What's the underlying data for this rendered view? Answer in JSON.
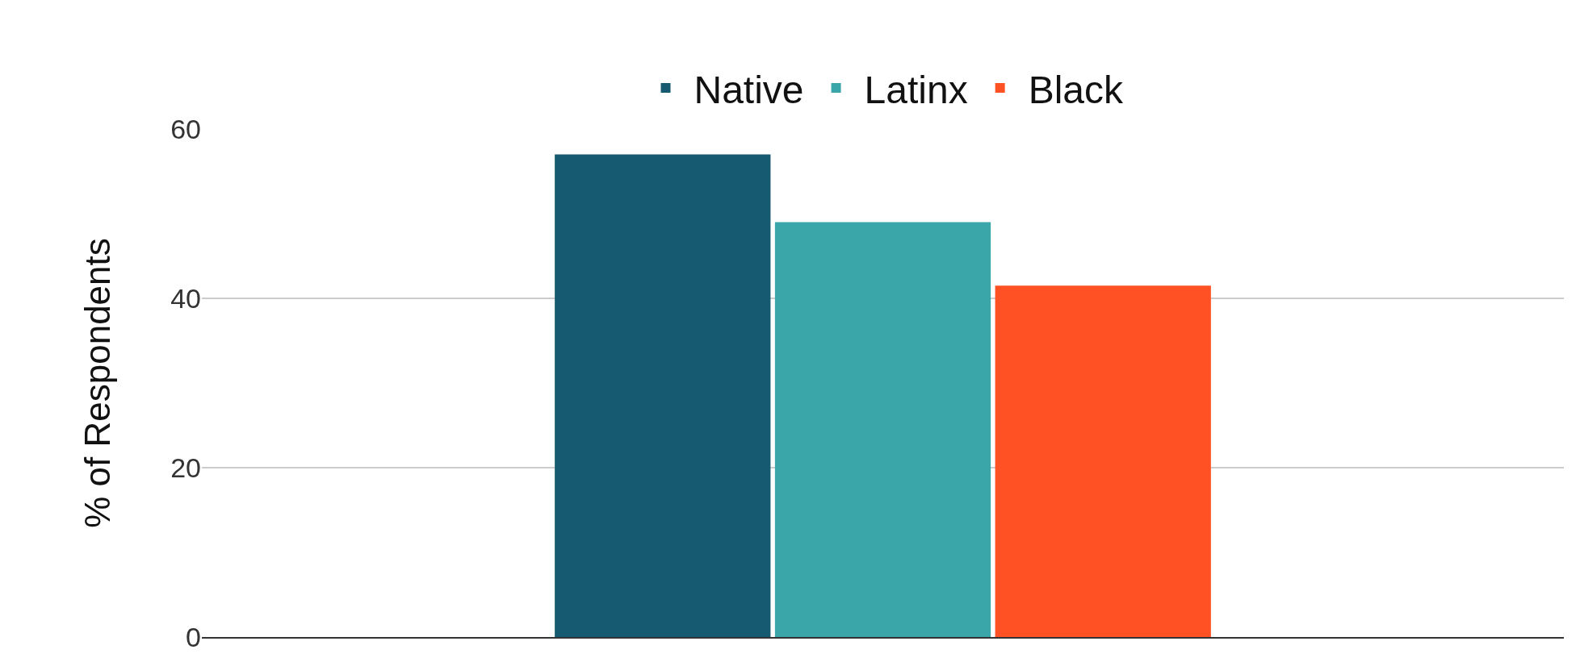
{
  "chart_data": {
    "type": "bar",
    "ylabel": "% of Respondents",
    "categories": [
      null
    ],
    "series": [
      {
        "name": "Native",
        "color": "#165a72",
        "values": [
          57
        ]
      },
      {
        "name": "Latinx",
        "color": "#3aa6a9",
        "values": [
          49
        ]
      },
      {
        "name": "Black",
        "color": "#ff5124",
        "values": [
          41.5
        ]
      }
    ],
    "ylim": [
      0,
      60
    ],
    "yticks": [
      0,
      20,
      40,
      60
    ],
    "grid": "y",
    "legend": "top"
  }
}
